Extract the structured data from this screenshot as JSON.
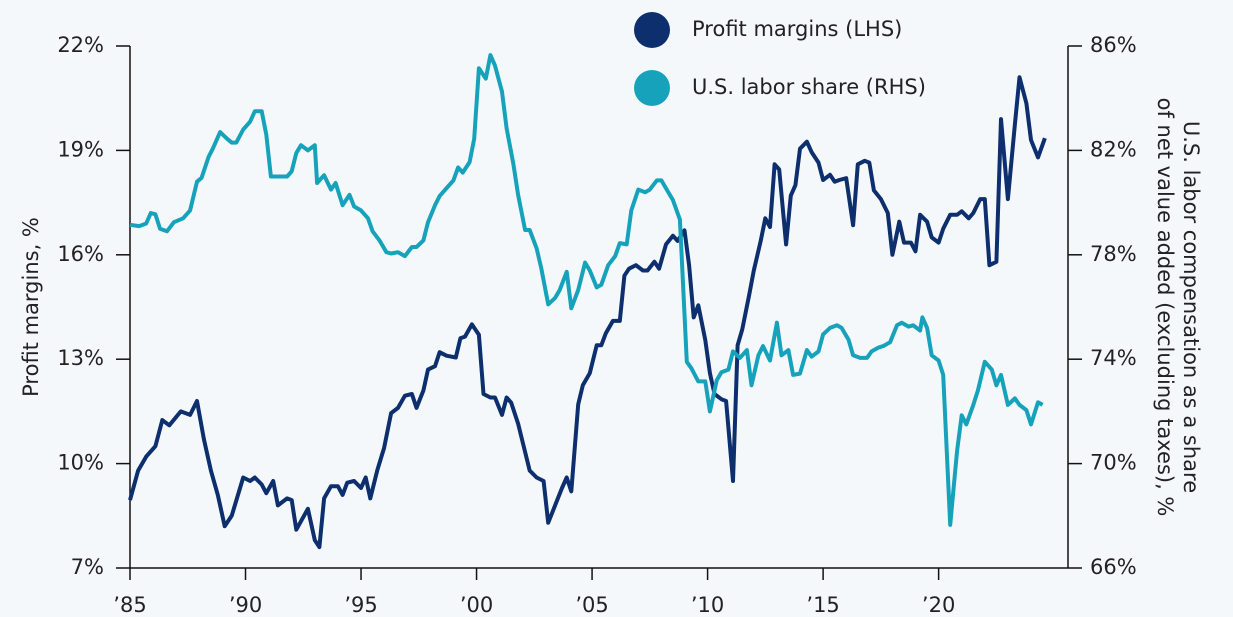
{
  "chart_data": {
    "type": "line",
    "ylabel": "Profit margins, %",
    "y2label": [
      "U.S. labor compensation as a share",
      "of net value added (excluding taxes), %"
    ],
    "xlim": [
      1985,
      2025.6
    ],
    "xticks": [
      {
        "value": 1985,
        "label": "’85"
      },
      {
        "value": 1990,
        "label": "’90"
      },
      {
        "value": 1995,
        "label": "’95"
      },
      {
        "value": 2000,
        "label": "’00"
      },
      {
        "value": 2005,
        "label": "’05"
      },
      {
        "value": 2010,
        "label": "’10"
      },
      {
        "value": 2015,
        "label": "’15"
      },
      {
        "value": 2020,
        "label": "’20"
      }
    ],
    "ylim": [
      7,
      22
    ],
    "yticks": [
      {
        "value": 7,
        "label": "7%"
      },
      {
        "value": 10,
        "label": "10%"
      },
      {
        "value": 13,
        "label": "13%"
      },
      {
        "value": 16,
        "label": "16%"
      },
      {
        "value": 19,
        "label": "19%"
      },
      {
        "value": 22,
        "label": "22%"
      }
    ],
    "y2lim": [
      66,
      86
    ],
    "y2ticks": [
      {
        "value": 66,
        "label": "66%"
      },
      {
        "value": 70,
        "label": "70%"
      },
      {
        "value": 74,
        "label": "74%"
      },
      {
        "value": 78,
        "label": "78%"
      },
      {
        "value": 82,
        "label": "82%"
      },
      {
        "value": 86,
        "label": "86%"
      }
    ],
    "legend": "top",
    "series": [
      {
        "name": "Profit margins (LHS)",
        "color": "#0d2f6e",
        "x": [
          1985.0,
          1985.35,
          1985.7,
          1986.1,
          1986.4,
          1986.7,
          1987.2,
          1987.6,
          1987.9,
          1988.2,
          1988.5,
          1988.8,
          1989.1,
          1989.4,
          1989.9,
          1990.2,
          1990.4,
          1990.7,
          1990.9,
          1991.2,
          1991.4,
          1991.8,
          1992.0,
          1992.2,
          1992.7,
          1993.0,
          1993.2,
          1993.4,
          1993.7,
          1994.0,
          1994.2,
          1994.4,
          1994.7,
          1995.0,
          1995.2,
          1995.4,
          1995.7,
          1996.0,
          1996.3,
          1996.6,
          1996.9,
          1997.2,
          1997.4,
          1997.7,
          1997.9,
          1998.2,
          1998.4,
          1998.7,
          1999.1,
          1999.3,
          1999.5,
          1999.8,
          2000.1,
          2000.3,
          2000.6,
          2000.8,
          2001.1,
          2001.3,
          2001.5,
          2001.8,
          2002.0,
          2002.3,
          2002.6,
          2002.9,
          2003.1,
          2003.4,
          2003.7,
          2003.9,
          2004.1,
          2004.4,
          2004.6,
          2004.9,
          2005.2,
          2005.4,
          2005.6,
          2005.9,
          2006.2,
          2006.4,
          2006.6,
          2006.9,
          2007.2,
          2007.4,
          2007.7,
          2007.9,
          2008.2,
          2008.5,
          2008.7,
          2009.0,
          2009.2,
          2009.4,
          2009.6,
          2009.9,
          2010.1,
          2010.3,
          2010.6,
          2010.8,
          2011.1,
          2011.3,
          2011.5,
          2011.8,
          2012.0,
          2012.3,
          2012.5,
          2012.7,
          2012.9,
          2013.1,
          2013.4,
          2013.6,
          2013.8,
          2014.0,
          2014.3,
          2014.5,
          2014.8,
          2015.0,
          2015.3,
          2015.5,
          2015.7,
          2016.0,
          2016.3,
          2016.5,
          2016.8,
          2017.0,
          2017.2,
          2017.5,
          2017.8,
          2018.0,
          2018.3,
          2018.5,
          2018.8,
          2019.0,
          2019.2,
          2019.5,
          2019.7,
          2020.0,
          2020.2,
          2020.5,
          2020.8,
          2021.0,
          2021.3,
          2021.5,
          2021.8,
          2022.0,
          2022.2,
          2022.5,
          2022.7,
          2023.0,
          2023.3,
          2023.5,
          2023.8,
          2024.0,
          2024.3,
          2024.6
        ],
        "values": [
          8.95,
          9.8,
          10.2,
          10.5,
          11.25,
          11.1,
          11.5,
          11.4,
          11.8,
          10.7,
          9.8,
          9.1,
          8.2,
          8.5,
          9.6,
          9.5,
          9.6,
          9.4,
          9.15,
          9.5,
          8.8,
          9.0,
          8.95,
          8.1,
          8.7,
          7.8,
          7.6,
          9.0,
          9.35,
          9.35,
          9.1,
          9.45,
          9.5,
          9.3,
          9.6,
          9.0,
          9.8,
          10.45,
          11.45,
          11.6,
          11.95,
          12.0,
          11.6,
          12.1,
          12.7,
          12.8,
          13.2,
          13.1,
          13.05,
          13.6,
          13.65,
          14.0,
          13.7,
          12.0,
          11.9,
          11.9,
          11.4,
          11.9,
          11.75,
          11.15,
          10.6,
          9.8,
          9.6,
          9.5,
          8.3,
          8.8,
          9.3,
          9.6,
          9.2,
          11.7,
          12.25,
          12.6,
          13.4,
          13.4,
          13.75,
          14.1,
          14.1,
          15.4,
          15.6,
          15.7,
          15.55,
          15.55,
          15.8,
          15.6,
          16.3,
          16.55,
          16.4,
          16.7,
          15.7,
          14.2,
          14.55,
          13.55,
          12.6,
          12.0,
          11.85,
          11.8,
          9.5,
          13.4,
          13.85,
          14.85,
          15.55,
          16.4,
          17.05,
          16.8,
          18.6,
          18.45,
          16.3,
          17.7,
          18.0,
          19.05,
          19.25,
          18.95,
          18.65,
          18.15,
          18.3,
          18.1,
          18.15,
          18.2,
          16.85,
          18.6,
          18.7,
          18.65,
          17.85,
          17.6,
          17.2,
          16.0,
          16.95,
          16.35,
          16.35,
          16.1,
          17.15,
          16.95,
          16.5,
          16.35,
          16.75,
          17.15,
          17.15,
          17.25,
          17.05,
          17.2,
          17.6,
          17.6,
          15.7,
          15.8,
          19.9,
          17.6,
          19.75,
          21.1,
          20.35,
          19.3,
          18.8,
          19.35
        ]
      },
      {
        "name": "U.S. labor share (RHS)",
        "color": "#17a2bb",
        "axis": "y2",
        "x": [
          1985.0,
          1985.4,
          1985.7,
          1985.9,
          1986.1,
          1986.3,
          1986.6,
          1986.9,
          1987.3,
          1987.6,
          1987.9,
          1988.1,
          1988.4,
          1988.6,
          1988.9,
          1989.2,
          1989.4,
          1989.6,
          1989.9,
          1990.2,
          1990.4,
          1990.7,
          1990.9,
          1991.1,
          1991.5,
          1991.8,
          1992.0,
          1992.2,
          1992.4,
          1992.7,
          1993.0,
          1993.1,
          1993.4,
          1993.7,
          1993.9,
          1994.2,
          1994.5,
          1994.7,
          1995.0,
          1995.3,
          1995.5,
          1995.8,
          1996.1,
          1996.3,
          1996.6,
          1996.9,
          1997.2,
          1997.4,
          1997.7,
          1997.9,
          1998.2,
          1998.4,
          1998.7,
          1999.0,
          1999.2,
          1999.4,
          1999.7,
          1999.9,
          2000.1,
          2000.4,
          2000.6,
          2000.8,
          2001.1,
          2001.3,
          2001.6,
          2001.8,
          2002.1,
          2002.3,
          2002.6,
          2002.8,
          2003.1,
          2003.4,
          2003.6,
          2003.9,
          2004.1,
          2004.4,
          2004.7,
          2004.9,
          2005.2,
          2005.4,
          2005.7,
          2006.0,
          2006.2,
          2006.5,
          2006.7,
          2007.0,
          2007.3,
          2007.5,
          2007.8,
          2008.0,
          2008.3,
          2008.5,
          2008.8,
          2009.1,
          2009.3,
          2009.6,
          2009.9,
          2010.1,
          2010.4,
          2010.6,
          2010.9,
          2011.1,
          2011.4,
          2011.7,
          2011.9,
          2012.2,
          2012.4,
          2012.7,
          2013.0,
          2013.2,
          2013.5,
          2013.7,
          2014.0,
          2014.3,
          2014.5,
          2014.8,
          2015.0,
          2015.3,
          2015.6,
          2015.8,
          2016.1,
          2016.3,
          2016.6,
          2016.9,
          2017.1,
          2017.4,
          2017.6,
          2017.9,
          2018.2,
          2018.4,
          2018.7,
          2018.9,
          2019.2,
          2019.3,
          2019.5,
          2019.7,
          2020.0,
          2020.2,
          2020.5,
          2020.8,
          2021.0,
          2021.2,
          2021.5,
          2021.7,
          2022.0,
          2022.3,
          2022.5,
          2022.7,
          2023.0,
          2023.3,
          2023.5,
          2023.8,
          2024.0,
          2024.3,
          2024.5
        ],
        "values": [
          79.15,
          79.1,
          79.2,
          79.6,
          79.55,
          79.0,
          78.9,
          79.25,
          79.4,
          79.7,
          80.8,
          80.95,
          81.75,
          82.1,
          82.7,
          82.45,
          82.3,
          82.3,
          82.8,
          83.1,
          83.5,
          83.5,
          82.6,
          81.0,
          81.0,
          81.0,
          81.2,
          81.9,
          82.2,
          82.0,
          82.2,
          80.75,
          81.05,
          80.5,
          80.75,
          79.9,
          80.3,
          79.85,
          79.7,
          79.4,
          78.9,
          78.55,
          78.1,
          78.05,
          78.1,
          77.95,
          78.3,
          78.3,
          78.55,
          79.25,
          79.9,
          80.25,
          80.55,
          80.85,
          81.35,
          81.15,
          81.55,
          82.45,
          85.15,
          84.75,
          85.65,
          85.25,
          84.25,
          82.85,
          81.45,
          80.3,
          78.95,
          78.95,
          78.25,
          77.5,
          76.1,
          76.35,
          76.65,
          77.35,
          75.95,
          76.65,
          77.7,
          77.4,
          76.75,
          76.85,
          77.6,
          77.95,
          78.45,
          78.4,
          79.7,
          80.5,
          80.4,
          80.5,
          80.85,
          80.85,
          80.4,
          80.1,
          79.35,
          73.9,
          73.65,
          73.15,
          73.15,
          72.0,
          73.2,
          73.5,
          73.6,
          74.3,
          74.05,
          74.35,
          73.0,
          74.15,
          74.5,
          73.95,
          75.4,
          74.15,
          74.35,
          73.4,
          73.45,
          74.35,
          74.1,
          74.3,
          74.95,
          75.2,
          75.3,
          75.2,
          74.75,
          74.15,
          74.05,
          74.05,
          74.3,
          74.45,
          74.5,
          74.65,
          75.3,
          75.4,
          75.25,
          75.3,
          75.1,
          75.6,
          75.2,
          74.15,
          73.95,
          73.4,
          67.65,
          70.5,
          71.85,
          71.5,
          72.25,
          72.8,
          73.9,
          73.6,
          73.0,
          73.4,
          72.25,
          72.5,
          72.25,
          72.05,
          71.5,
          72.35,
          72.25
        ]
      }
    ]
  }
}
